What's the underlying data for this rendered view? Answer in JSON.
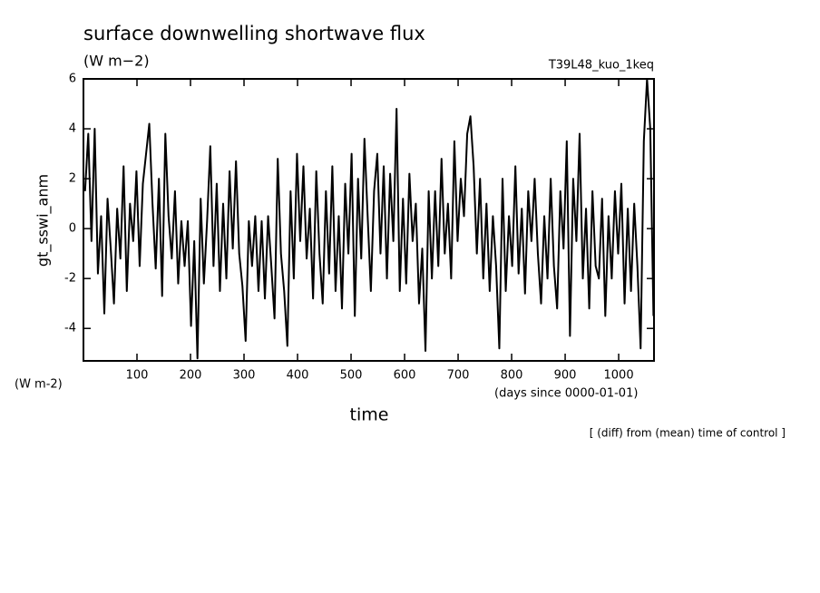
{
  "chart_data": {
    "type": "line",
    "title": "surface downwelling shortwave flux",
    "units": "(W m−2)",
    "run_label": "T39L48_kuo_1keq",
    "y_label": "gt_sswi_anm",
    "y_units": "(W m-2)",
    "x_units": "(days since 0000-01-01)",
    "x_label": "time",
    "note": "[ (diff) from (mean) time of control ]",
    "xlim": [
      0,
      1066
    ],
    "ylim": [
      -5.3,
      6
    ],
    "xticks": [
      100,
      200,
      300,
      400,
      500,
      600,
      700,
      800,
      900,
      1000
    ],
    "yticks": [
      -4,
      -2,
      0,
      2,
      4,
      6
    ],
    "grid": false,
    "x": [
      3,
      9,
      15,
      21,
      27,
      33,
      39,
      45,
      51,
      57,
      63,
      69,
      75,
      81,
      87,
      93,
      99,
      105,
      111,
      117,
      123,
      129,
      135,
      141,
      147,
      153,
      159,
      165,
      171,
      177,
      183,
      189,
      195,
      201,
      207,
      213,
      219,
      225,
      231,
      237,
      243,
      249,
      255,
      261,
      267,
      273,
      279,
      285,
      291,
      297,
      303,
      309,
      315,
      321,
      327,
      333,
      339,
      345,
      351,
      357,
      363,
      369,
      375,
      381,
      387,
      393,
      399,
      405,
      411,
      417,
      423,
      429,
      435,
      441,
      447,
      453,
      459,
      465,
      471,
      477,
      483,
      489,
      495,
      501,
      507,
      513,
      519,
      525,
      531,
      537,
      543,
      549,
      555,
      561,
      567,
      573,
      579,
      585,
      591,
      597,
      603,
      609,
      615,
      621,
      627,
      633,
      639,
      645,
      651,
      657,
      663,
      669,
      675,
      681,
      687,
      693,
      699,
      705,
      711,
      717,
      723,
      729,
      735,
      741,
      747,
      753,
      759,
      765,
      771,
      777,
      783,
      789,
      795,
      801,
      807,
      813,
      819,
      825,
      831,
      837,
      843,
      849,
      855,
      861,
      867,
      873,
      879,
      885,
      891,
      897,
      903,
      909,
      915,
      921,
      927,
      933,
      939,
      945,
      951,
      957,
      963,
      969,
      975,
      981,
      987,
      993,
      999,
      1005,
      1011,
      1017,
      1023,
      1029,
      1035,
      1041,
      1047,
      1053,
      1059,
      1065
    ],
    "series": [
      {
        "color": "#000000",
        "values": [
          1.5,
          3.8,
          -0.5,
          4.0,
          -1.8,
          0.5,
          -3.4,
          1.2,
          -0.8,
          -3.0,
          0.8,
          -1.2,
          2.5,
          -2.5,
          1.0,
          -0.5,
          2.3,
          -1.5,
          1.8,
          3.0,
          4.2,
          1.0,
          -1.6,
          2.0,
          -2.7,
          3.8,
          0.5,
          -1.2,
          1.5,
          -2.2,
          0.3,
          -1.5,
          0.3,
          -3.9,
          -0.5,
          -5.2,
          1.2,
          -2.2,
          0.3,
          3.3,
          -1.5,
          1.8,
          -2.5,
          1.0,
          -2.0,
          2.3,
          -0.8,
          2.7,
          -1.0,
          -2.3,
          -4.5,
          0.3,
          -1.5,
          0.5,
          -2.5,
          0.3,
          -2.8,
          0.5,
          -1.5,
          -3.6,
          2.8,
          -1.0,
          -2.5,
          -4.7,
          1.5,
          -2.0,
          3.0,
          -0.5,
          2.5,
          -1.2,
          0.8,
          -2.8,
          2.3,
          -1.0,
          -3.0,
          1.5,
          -1.8,
          2.5,
          -2.5,
          0.5,
          -3.2,
          1.8,
          -1.0,
          3.0,
          -3.5,
          2.0,
          -1.2,
          3.6,
          0.5,
          -2.5,
          1.5,
          3.0,
          -1.0,
          2.5,
          -2.0,
          2.2,
          -0.5,
          4.8,
          -2.5,
          1.2,
          -2.2,
          2.2,
          -0.5,
          1.0,
          -3.0,
          -0.8,
          -4.9,
          1.5,
          -2.0,
          1.5,
          -1.5,
          2.8,
          -1.0,
          1.0,
          -2.0,
          3.5,
          -0.5,
          2.0,
          0.5,
          3.8,
          4.5,
          2.5,
          -1.0,
          2.0,
          -2.0,
          1.0,
          -2.5,
          0.5,
          -1.5,
          -4.8,
          2.0,
          -2.5,
          0.5,
          -1.5,
          2.5,
          -1.8,
          0.8,
          -2.6,
          1.5,
          -0.5,
          2.0,
          -1.0,
          -3.0,
          0.5,
          -2.0,
          2.0,
          -1.5,
          -3.2,
          1.5,
          -0.8,
          3.5,
          -4.3,
          2.0,
          -0.5,
          3.8,
          -2.0,
          0.8,
          -3.2,
          1.5,
          -1.5,
          -2.0,
          1.2,
          -3.5,
          0.5,
          -2.0,
          1.5,
          -1.0,
          1.8,
          -3.0,
          0.8,
          -2.5,
          1.0,
          -1.5,
          -4.8,
          3.5,
          6.0,
          4.0,
          -3.5
        ]
      }
    ]
  }
}
